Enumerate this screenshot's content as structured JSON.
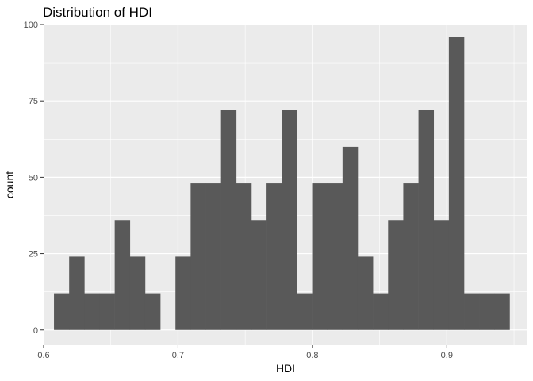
{
  "chart_data": {
    "type": "bar",
    "title": "Distribution of HDI",
    "xlabel": "HDI",
    "ylabel": "count",
    "xlim": [
      0.6,
      0.96
    ],
    "ylim": [
      -5,
      100
    ],
    "x_ticks": [
      {
        "value": 0.6,
        "label": "0.6"
      },
      {
        "value": 0.7,
        "label": "0.7"
      },
      {
        "value": 0.8,
        "label": "0.8"
      },
      {
        "value": 0.9,
        "label": "0.9"
      }
    ],
    "y_ticks": [
      {
        "value": 0,
        "label": "0"
      },
      {
        "value": 25,
        "label": "25"
      },
      {
        "value": 50,
        "label": "50"
      },
      {
        "value": 75,
        "label": "75"
      },
      {
        "value": 100,
        "label": "100"
      }
    ],
    "bin_width": 0.0113,
    "bin_start": 0.6077,
    "values": [
      12,
      24,
      12,
      12,
      36,
      24,
      12,
      0,
      24,
      48,
      48,
      72,
      48,
      36,
      48,
      72,
      12,
      48,
      48,
      60,
      24,
      12,
      36,
      48,
      72,
      36,
      96,
      12,
      12,
      12
    ],
    "bar_color": "#595959",
    "panel_color": "#ebebeb",
    "grid": true
  }
}
